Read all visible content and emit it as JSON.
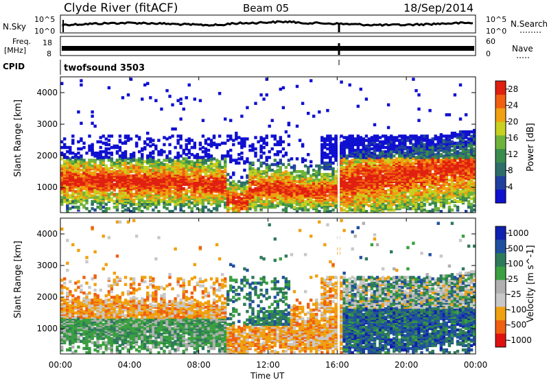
{
  "header": {
    "station": "Clyde River (fitACF)",
    "beam": "Beam 05",
    "date": "18/Sep/2014"
  },
  "labels": {
    "nsky": "N.Sky",
    "nsearch": "N.Search",
    "freq_line1": "Freq.",
    "freq_line2": "[MHz]",
    "nave": "Nave",
    "cpid": "CPID",
    "cpid_value": "twofsound 3503",
    "nsky_tick_top": "10^5",
    "nsky_tick_bottom": "10^0",
    "nsearch_tick_top": "10^5",
    "nsearch_tick_bottom": "10^0",
    "freq_tick_top": "18",
    "freq_tick_bottom": "8",
    "nave_tick_top": "60",
    "nave_tick_bottom": "0"
  },
  "colors": {
    "power_scale": [
      "#1010d0",
      "#2040a0",
      "#2e6e6a",
      "#3a8c4c",
      "#6fb43a",
      "#c8d020",
      "#f0a010",
      "#f06010",
      "#e02010"
    ],
    "velocity_scale": [
      "#1020b0",
      "#2050a0",
      "#2e7a5a",
      "#3aa040",
      "#b0b0b0",
      "#c8c8c8",
      "#f0a010",
      "#f06010",
      "#e01010"
    ]
  },
  "chart_data": [
    {
      "type": "line",
      "name": "N.Sky / N.Search",
      "x": [
        "00:00",
        "04:00",
        "08:00",
        "12:00",
        "16:00",
        "20:00",
        "00:00"
      ],
      "ylabel_left": "N.Sky",
      "ylabel_right": "N.Search",
      "yticks_left": [
        "10^5",
        "10^0"
      ],
      "yticks_right": [
        "10^5",
        "10^0"
      ]
    },
    {
      "type": "line",
      "name": "Freq. / Nave",
      "ylabel_left": "Freq. [MHz]",
      "ylabel_right": "Nave",
      "yticks_left": [
        "18",
        "8"
      ],
      "yticks_right": [
        "60",
        "0"
      ]
    },
    {
      "type": "heatmap",
      "title": "",
      "ylabel": "Slant Range [km]",
      "yticks": [
        "1000",
        "2000",
        "3000",
        "4000"
      ],
      "ylim": [
        200,
        4500
      ],
      "xticks": [
        "00:00",
        "04:00",
        "08:00",
        "12:00",
        "16:00",
        "20:00",
        "00:00"
      ],
      "colorbar_label": "Power [dB]",
      "colorbar_ticks": [
        "4",
        "8",
        "12",
        "16",
        "20",
        "24",
        "28"
      ],
      "colorbar_range": [
        0,
        30
      ]
    },
    {
      "type": "heatmap",
      "title": "",
      "ylabel": "Slant Range [km]",
      "xlabel": "Time UT",
      "yticks": [
        "1000",
        "2000",
        "3000",
        "4000"
      ],
      "ylim": [
        200,
        4500
      ],
      "xticks": [
        "00:00",
        "04:00",
        "08:00",
        "12:00",
        "16:00",
        "20:00",
        "00:00"
      ],
      "colorbar_label": "Velocity [m s^-1]",
      "colorbar_ticks": [
        "1000",
        "500",
        "100",
        "25",
        "-25",
        "-100",
        "-500",
        "-1000"
      ],
      "colorbar_range": [
        -1000,
        1000
      ]
    }
  ]
}
